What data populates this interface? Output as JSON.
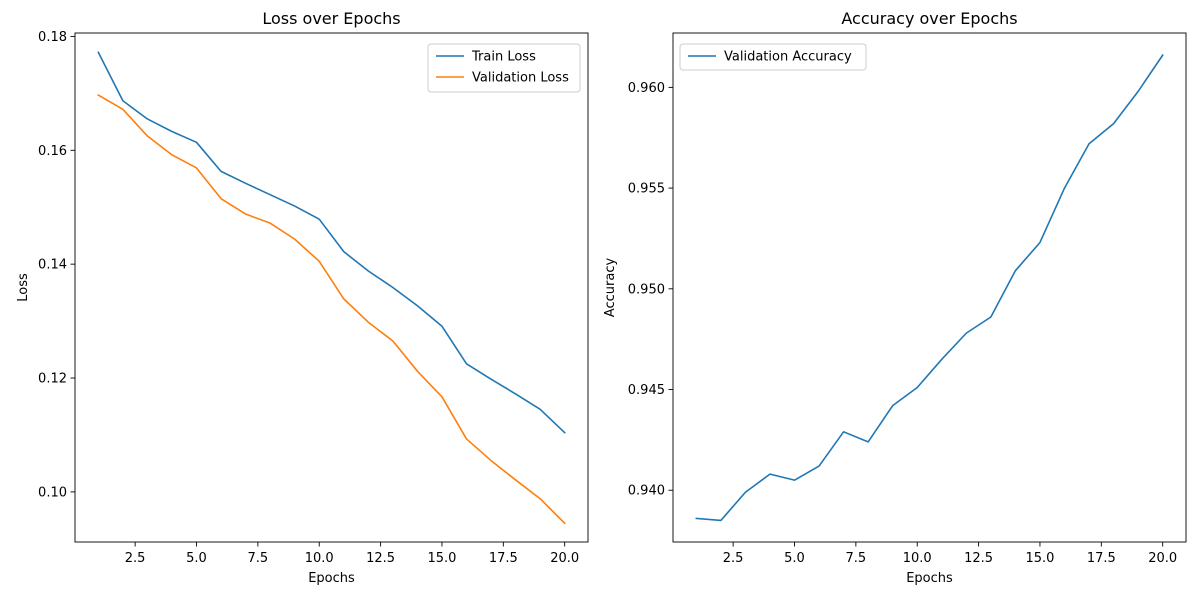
{
  "chart_data": [
    {
      "type": "line",
      "title": "Loss over Epochs",
      "xlabel": "Epochs",
      "ylabel": "Loss",
      "xlim": [
        0.05,
        20.95
      ],
      "ylim": [
        0.0912,
        0.1806
      ],
      "xticks": [
        2.5,
        5.0,
        7.5,
        10.0,
        12.5,
        15.0,
        17.5,
        20.0
      ],
      "xtick_labels": [
        "2.5",
        "5.0",
        "7.5",
        "10.0",
        "12.5",
        "15.0",
        "17.5",
        "20.0"
      ],
      "yticks": [
        0.1,
        0.12,
        0.14,
        0.16,
        0.18
      ],
      "ytick_labels": [
        "0.10",
        "0.12",
        "0.14",
        "0.16",
        "0.18"
      ],
      "grid": false,
      "legend_position": "top-right",
      "x": [
        1,
        2,
        3,
        4,
        5,
        6,
        7,
        8,
        9,
        10,
        11,
        12,
        13,
        14,
        15,
        16,
        17,
        18,
        19,
        20
      ],
      "series": [
        {
          "name": "Train Loss",
          "color": "#1f77b4",
          "values": [
            0.1772,
            0.1687,
            0.1655,
            0.1633,
            0.1614,
            0.1563,
            0.1542,
            0.1522,
            0.1502,
            0.1479,
            0.1422,
            0.1388,
            0.1359,
            0.1327,
            0.1291,
            0.1225,
            0.1198,
            0.1172,
            0.1145,
            0.1104
          ]
        },
        {
          "name": "Validation Loss",
          "color": "#ff7f0e",
          "values": [
            0.1697,
            0.1672,
            0.1625,
            0.1592,
            0.1569,
            0.1515,
            0.1488,
            0.1472,
            0.1444,
            0.1405,
            0.1339,
            0.1298,
            0.1265,
            0.1212,
            0.1167,
            0.1093,
            0.1055,
            0.1021,
            0.0988,
            0.0945
          ]
        }
      ]
    },
    {
      "type": "line",
      "title": "Accuracy over Epochs",
      "xlabel": "Epochs",
      "ylabel": "Accuracy",
      "xlim": [
        0.05,
        20.95
      ],
      "ylim": [
        0.93743,
        0.9627
      ],
      "xticks": [
        2.5,
        5.0,
        7.5,
        10.0,
        12.5,
        15.0,
        17.5,
        20.0
      ],
      "xtick_labels": [
        "2.5",
        "5.0",
        "7.5",
        "10.0",
        "12.5",
        "15.0",
        "17.5",
        "20.0"
      ],
      "yticks": [
        0.94,
        0.945,
        0.95,
        0.955,
        0.96
      ],
      "ytick_labels": [
        "0.940",
        "0.945",
        "0.950",
        "0.955",
        "0.960"
      ],
      "grid": false,
      "legend_position": "top-left",
      "x": [
        1,
        2,
        3,
        4,
        5,
        6,
        7,
        8,
        9,
        10,
        11,
        12,
        13,
        14,
        15,
        16,
        17,
        18,
        19,
        20
      ],
      "series": [
        {
          "name": "Validation Accuracy",
          "color": "#1f77b4",
          "values": [
            0.9386,
            0.9385,
            0.9399,
            0.9408,
            0.9405,
            0.9412,
            0.9429,
            0.9424,
            0.9442,
            0.9451,
            0.9465,
            0.9478,
            0.9486,
            0.9509,
            0.9523,
            0.955,
            0.9572,
            0.9582,
            0.9598,
            0.9616
          ]
        }
      ]
    }
  ]
}
